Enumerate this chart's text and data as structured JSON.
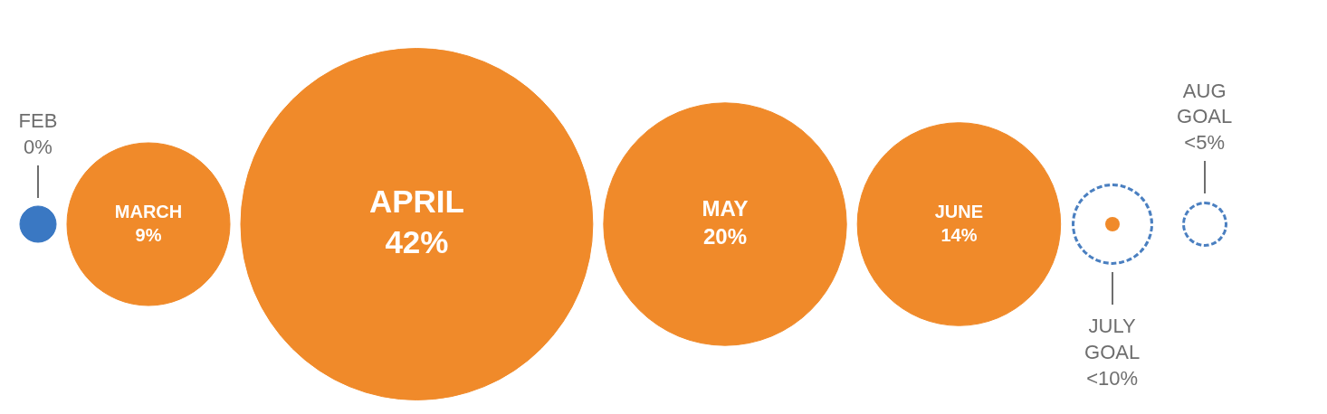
{
  "chart_data": {
    "type": "other",
    "categories": [
      "FEB",
      "MARCH",
      "APRIL",
      "MAY",
      "JUNE",
      "JULY GOAL",
      "AUG GOAL"
    ],
    "values": [
      0,
      9,
      42,
      20,
      14,
      null,
      null
    ],
    "value_labels": [
      "0%",
      "9%",
      "42%",
      "20%",
      "14%",
      "<10%",
      "<5%"
    ],
    "colors": [
      "#3a78c3",
      "#f08a2a",
      "#f08a2a",
      "#f08a2a",
      "#f08a2a",
      "#4a7fc0",
      "#4a7fc0"
    ]
  }
}
